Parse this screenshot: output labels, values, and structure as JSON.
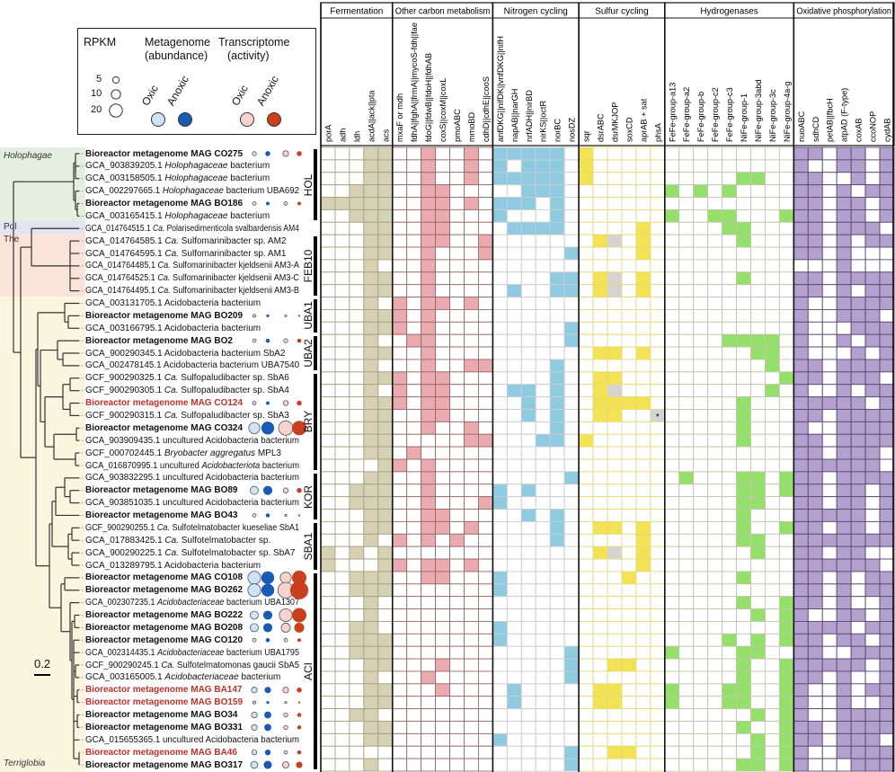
{
  "legend": {
    "rpkm_title": "RPKM",
    "metagenome_title": "Metagenome",
    "metagenome_sub": "(abundance)",
    "transcriptome_title": "Transcriptome",
    "transcriptome_sub": "(activity)",
    "size_keys": [
      "5",
      "10",
      "20"
    ],
    "oxic_label": "Oxic",
    "anoxic_label": "Anoxic",
    "colors": {
      "meta_oxic": "#cfe3f6",
      "meta_anoxic": "#1a5bb5",
      "trans_oxic": "#f7d3cf",
      "trans_anoxic": "#c9401f"
    }
  },
  "bands": [
    {
      "label": "Holophagae",
      "italic": true,
      "color": "#e4efdf"
    },
    {
      "label": "Pol",
      "italic": false,
      "color": "#e2e4f2"
    },
    {
      "label": "The",
      "italic": false,
      "color": "#fae3d8"
    },
    {
      "label": "Terriglobia",
      "italic": true,
      "color": "#fbf4de"
    }
  ],
  "scale_bar": "0.2",
  "clades": [
    "HOL",
    "FEB10",
    "UBA1",
    "UBA2",
    "BRY",
    "KOR",
    "SBA1",
    "ACI"
  ],
  "chart_data": {
    "type": "heatmap",
    "groups": [
      {
        "name": "Fermentation",
        "color": "#d6d0b4",
        "genes": [
          "porA",
          "adh",
          "ldh",
          "acdA||ack||pta",
          "acs"
        ]
      },
      {
        "name": "Other carbon metabolism",
        "color": "#e9abad",
        "genes": [
          "mxaF or mdh",
          "fdhA||fghA||frmA||mycoS-fdh||fae",
          "fdoG||fdwB||fdoH||fdhAB",
          "coxS||coxM||coxL",
          "pmoABC",
          "mmoBD",
          "cdhD||cdhE||cooS"
        ]
      },
      {
        "name": "Nitrogen cycling",
        "color": "#8fcbe0",
        "genes": [
          "anfDKG||nifDK||vnfDKG||nifH",
          "napAB||narGH",
          "nrfADH||nirBD",
          "nirKS||octR",
          "norBC",
          "nosDZ"
        ]
      },
      {
        "name": "Sulfur cycling",
        "color": "#f3e354",
        "genes": [
          "sqr",
          "dsrABC",
          "dsrMKJOP",
          "soxCD",
          "aprAB + sat",
          "phsA"
        ]
      },
      {
        "name": "Hydrogenases",
        "color": "#95e06b",
        "genes": [
          "FeFe-group-a13",
          "FeFe-group-a2",
          "FeFe-group-b",
          "FeFe-group-c2",
          "FeFe-group-c3",
          "NiFe-group-1",
          "NiFe-group-3abd",
          "NiFe-group-3c",
          "NiFe-group-4a-g"
        ]
      },
      {
        "name": "Oxidative phosphorylation",
        "color": "#b4a0cf",
        "genes": [
          "nuoABC",
          "sdhCD",
          "petAB||fbcH",
          "atpAD (F-type)",
          "coxAB",
          "ccoNOP",
          "cydAB"
        ]
      }
    ],
    "cell_legend": {
      "1": "present",
      "0": "absent",
      "g": "partial (grey)",
      "s": "partial (grey) with asterisk"
    },
    "asterisk": "*",
    "partial_color": "#d4d4d4",
    "rows": [
      {
        "id": "Bioreactor metagenome MAG CO275",
        "mag": true,
        "red": false,
        "band": 0,
        "clade": 0,
        "rpkm": [
          2,
          3,
          4,
          3
        ],
        "cells": "0001100100101111101000000000000001101101"
      },
      {
        "id": "GCA_903839205.1",
        "it": "Holophagaceae",
        "post": "bacterium",
        "band": 0,
        "clade": 0,
        "cells": "0001100100101011101000000000000001001101"
      },
      {
        "id": "GCA_003158505.1",
        "it": "Holophagaceae",
        "post": "bacterium",
        "band": 0,
        "clade": 0,
        "cells": "0001100100101111101000000000011001100101"
      },
      {
        "id": "GCA_002297665.1",
        "it": "Holophagaceae",
        "post": "bacterium UBA692",
        "band": 0,
        "clade": 0,
        "cells": "0011100110000011100000001010100001101011"
      },
      {
        "id": "Bioreactor metagenome MAG BO186",
        "mag": true,
        "red": false,
        "band": 0,
        "clade": 0,
        "rpkm": [
          1.5,
          1.5,
          1.5,
          1.5
        ],
        "cells": "1111100110101110100000000000000001101101"
      },
      {
        "id": "GCA_003165415.1",
        "it": "Holophagaceae",
        "post": "bacterium",
        "band": 0,
        "clade": 0,
        "cells": "0011100110001000100000001001100011101101"
      },
      {
        "id": "GCA_014764515.1",
        "it": "Ca.",
        "post": "Polarisedimenticola svalbardensis AM4",
        "band": 1,
        "clade": -1,
        "cells": "0001100110000111100000100000110001101110"
      },
      {
        "id": "GCA_014764585.1",
        "it": "Ca.",
        "post": "Sulfomarinibacter sp. AM2",
        "band": 2,
        "clade": 1,
        "cells": "00011001100100000001g0100000010001101011"
      },
      {
        "id": "GCA_014764595.1",
        "it": "Ca.",
        "post": "Sulfomarinibacter sp. AM1",
        "band": 2,
        "clade": 1,
        "cells": "0001100100010000010000100000000001101000"
      },
      {
        "id": "GCA_014764485.1",
        "it": "Ca.",
        "post": "Sulfomarinibacter kjeldsenii AM3-A",
        "band": 2,
        "clade": 1,
        "cells": "0001000100000000000000000000000000001000"
      },
      {
        "id": "GCA_014764525.1",
        "it": "Ca.",
        "post": "Sulfomarinibacter kjeldsenii AM3-C",
        "band": 2,
        "clade": 1,
        "cells": "00011001000000001101g0100000010001101111"
      },
      {
        "id": "GCA_014764495.1",
        "it": "Ca.",
        "post": "Sulfomarinibacter kjeldsenii AM3-B",
        "band": 2,
        "clade": 1,
        "cells": "00011001000001001101g0100000000001101011"
      },
      {
        "id": "GCA_003131705.1",
        "post": "Acidobacteria bacterium",
        "band": 3,
        "clade": 2,
        "cells": "0001010110100000000000000000000001001111"
      },
      {
        "id": "Bioreactor metagenome MAG BO209",
        "mag": true,
        "red": false,
        "band": 3,
        "clade": 2,
        "rpkm": [
          1,
          1,
          0.5,
          0.5
        ],
        "cells": "0001110100000000000000000000000001001110"
      },
      {
        "id": "GCA_003166795.1",
        "post": "Acidobacteria bacterium",
        "band": 3,
        "clade": 2,
        "cells": "0001110100000000010000000000000001000111"
      },
      {
        "id": "Bioreactor metagenome MAG BO2",
        "mag": true,
        "red": false,
        "band": 3,
        "clade": 3,
        "rpkm": [
          1.5,
          2,
          2,
          2
        ],
        "cells": "0001001100000000010000000000111101001011"
      },
      {
        "id": "GCA_900290345.1",
        "post": "Acidobacteria bacterium SbA2",
        "band": 3,
        "clade": 3,
        "cells": "0001100100000000000110100000001101000101"
      },
      {
        "id": "GCA_002478145.1",
        "post": "Acidobacteria bacterium UBA7540",
        "band": 3,
        "clade": 3,
        "cells": "0001000100110000100000000000000101101111"
      },
      {
        "id": "GCF_900290325.1",
        "it": "Ca.",
        "post": "Sulfopaludibacter sp. SbA6",
        "band": 3,
        "clade": 4,
        "cells": "0001110110000000100110000000000011101110"
      },
      {
        "id": "GCF_900290305.1",
        "it": "Ca.",
        "post": "Sulfopaludibacter sp. SbA4",
        "band": 3,
        "clade": 4,
        "cells": "00010101100001101001g0000000000101001011"
      },
      {
        "id": "Bioreactor metagenome MAG CO124",
        "mag": true,
        "red": true,
        "band": 3,
        "clade": 4,
        "rpkm": [
          1.5,
          1.5,
          3,
          3
        ],
        "cells": "0001110110000010100111100000010001111101"
      },
      {
        "id": "GCF_900290315.1",
        "it": "Ca.",
        "post": "Sulfopaludibacter sp. SbA3",
        "band": 3,
        "clade": 4,
        "cells": "00011001100000101001100s0000010001101111"
      },
      {
        "id": "Bioreactor metagenome MAG CO324",
        "mag": true,
        "red": false,
        "band": 3,
        "clade": 4,
        "rpkm": [
          15,
          20,
          25,
          25
        ],
        "cells": "0001100100100000100000000000010001001111"
      },
      {
        "id": "GCA_903909435.1",
        "post": "uncultured Acidobacteria bacterium",
        "band": 3,
        "clade": 4,
        "cells": "0001100000110001101000000000010001101111"
      },
      {
        "id": "GCF_000702445.1",
        "it": "Bryobacter aggregatus",
        "post": "MPL3",
        "band": 3,
        "clade": 4,
        "cells": "0001101000000000000000000000000001101110"
      },
      {
        "id": "GCA_016870995.1",
        "post": "uncultured",
        "it2": "Acidobacteriota",
        "post2": "bacterium",
        "band": 3,
        "clade": 4,
        "cells": "0000110100000000000000000000000001111110"
      },
      {
        "id": "GCA_903832295.1",
        "post": "uncultured Acidobacteria bacterium",
        "band": 3,
        "clade": 5,
        "cells": "0001100100000000010000000100011011101111"
      },
      {
        "id": "Bioreactor metagenome MAG BO89",
        "mag": true,
        "red": false,
        "band": 3,
        "clade": 5,
        "rpkm": [
          8,
          10,
          3,
          3
        ],
        "cells": "0011100100001010000000000000011011101101"
      },
      {
        "id": "GCA_903851035.1",
        "post": "uncultured Acidobacteria bacterium",
        "band": 3,
        "clade": 5,
        "cells": "0011100100011000000000000000011001101101"
      },
      {
        "id": "Bioreactor metagenome MAG BO43",
        "mag": true,
        "red": false,
        "band": 3,
        "clade": 5,
        "rpkm": [
          1.5,
          2,
          0.5,
          0.5
        ],
        "cells": "0001100110000010100000000000010001111101"
      },
      {
        "id": "GCF_900290255.1",
        "it": "Ca.",
        "post": "Sulfotelmatobacter kueseliae SbA1",
        "band": 3,
        "clade": 6,
        "cells": "0001100110100000100110100000010011101101"
      },
      {
        "id": "GCA_017883425.1",
        "it": "Ca.",
        "post": "Sulfotelmatobacter sp.",
        "band": 3,
        "clade": 6,
        "cells": "0001010101000000100000100000011001111111"
      },
      {
        "id": "GCA_900290225.1",
        "it": "Ca.",
        "post": "Sulfotelmatobacter sp. SbA7",
        "band": 3,
        "clade": 6,
        "cells": "10101000000000000001g0100000001001101100"
      },
      {
        "id": "GCA_013289795.1",
        "post": "Acidobacteria bacterium",
        "band": 3,
        "clade": 6,
        "cells": "1000110110100000000000100000000001111110"
      },
      {
        "id": "Bioreactor metagenome MAG CO108",
        "mag": true,
        "red": false,
        "band": 3,
        "clade": 7,
        "rpkm": [
          20,
          20,
          15,
          25
        ],
        "cells": "0011100110001000000001000000010001101011"
      },
      {
        "id": "Bioreactor metagenome MAG BO262",
        "mag": true,
        "red": false,
        "band": 3,
        "clade": 7,
        "rpkm": [
          20,
          20,
          30,
          40
        ],
        "cells": "0011100000001000000000000000000001101011"
      },
      {
        "id": "GCA_002307235.1",
        "it": "Acidobacteriaceae",
        "post": "bacterium UBA1307",
        "band": 3,
        "clade": 7,
        "cells": "0001000000000000000000000000010011101001"
      },
      {
        "id": "Bioreactor metagenome MAG BO222",
        "mag": true,
        "red": false,
        "band": 3,
        "clade": 7,
        "rpkm": [
          8,
          10,
          20,
          25
        ],
        "cells": "0001000000000000000000000000001011001101"
      },
      {
        "id": "Bioreactor metagenome MAG BO208",
        "mag": true,
        "red": false,
        "band": 3,
        "clade": 7,
        "rpkm": [
          8,
          10,
          10,
          12
        ],
        "cells": "0011000000001000000000000000000011111011"
      },
      {
        "id": "Bioreactor metagenome MAG CO120",
        "mag": true,
        "red": false,
        "band": 3,
        "clade": 7,
        "rpkm": [
          1.5,
          2,
          1.5,
          1.5
        ],
        "cells": "0011100000001000000000000000101011101101"
      },
      {
        "id": "GCA_002314435.1",
        "it": "Acidobacteriaceae",
        "post": "bacterium UBA1795",
        "band": 3,
        "clade": 7,
        "cells": "0011100000000000010000001000011001100111"
      },
      {
        "id": "GCF_900290245.1",
        "it": "Ca.",
        "post": "Sulfotelmatomonas gaucii SbA5",
        "band": 3,
        "clade": 7,
        "cells": "0001100010000000010011000000010011111101"
      },
      {
        "id": "GCA_003165005.1",
        "it": "Acidobacteriaceae",
        "post": "bacterium",
        "band": 3,
        "clade": 7,
        "cells": "0001000100000000010000000000010011101001"
      },
      {
        "id": "Bioreactor metagenome MAG BA147",
        "mag": true,
        "red": true,
        "band": 3,
        "clade": 7,
        "rpkm": [
          4,
          5,
          4,
          3
        ],
        "cells": "0001100010000100000110001000110011001011"
      },
      {
        "id": "Bioreactor metagenome MAG BO159",
        "mag": true,
        "red": true,
        "band": 3,
        "clade": 7,
        "rpkm": [
          1,
          1,
          0.5,
          0.5
        ],
        "cells": "0001100000000100000110001000110011001001"
      },
      {
        "id": "Bioreactor metagenome MAG BO34",
        "mag": true,
        "red": false,
        "band": 3,
        "clade": 7,
        "rpkm": [
          4,
          6,
          2,
          2
        ],
        "cells": "0011000000000000000000000000001011001111"
      },
      {
        "id": "Bioreactor metagenome MAG BO331",
        "mag": true,
        "red": false,
        "band": 3,
        "clade": 7,
        "rpkm": [
          4,
          6,
          2,
          2
        ],
        "cells": "0001100000000000000000000000010011101111"
      },
      {
        "id": "GCA_015655365.1",
        "post": "uncultured Acidobacteria bacterium",
        "band": 3,
        "clade": 7,
        "cells": "0001100000001000000000000000001011101110"
      },
      {
        "id": "Bioreactor metagenome MAG BA46",
        "mag": true,
        "red": true,
        "band": 3,
        "clade": 7,
        "rpkm": [
          3,
          4,
          1.5,
          2
        ],
        "cells": "0000000000000000010011000000001011001111"
      },
      {
        "id": "Bioreactor metagenome MAG BO317",
        "mag": true,
        "red": false,
        "band": 3,
        "clade": 7,
        "rpkm": [
          6,
          8,
          5,
          5
        ],
        "cells": "0001000000000000010000000000011011000111"
      }
    ]
  }
}
